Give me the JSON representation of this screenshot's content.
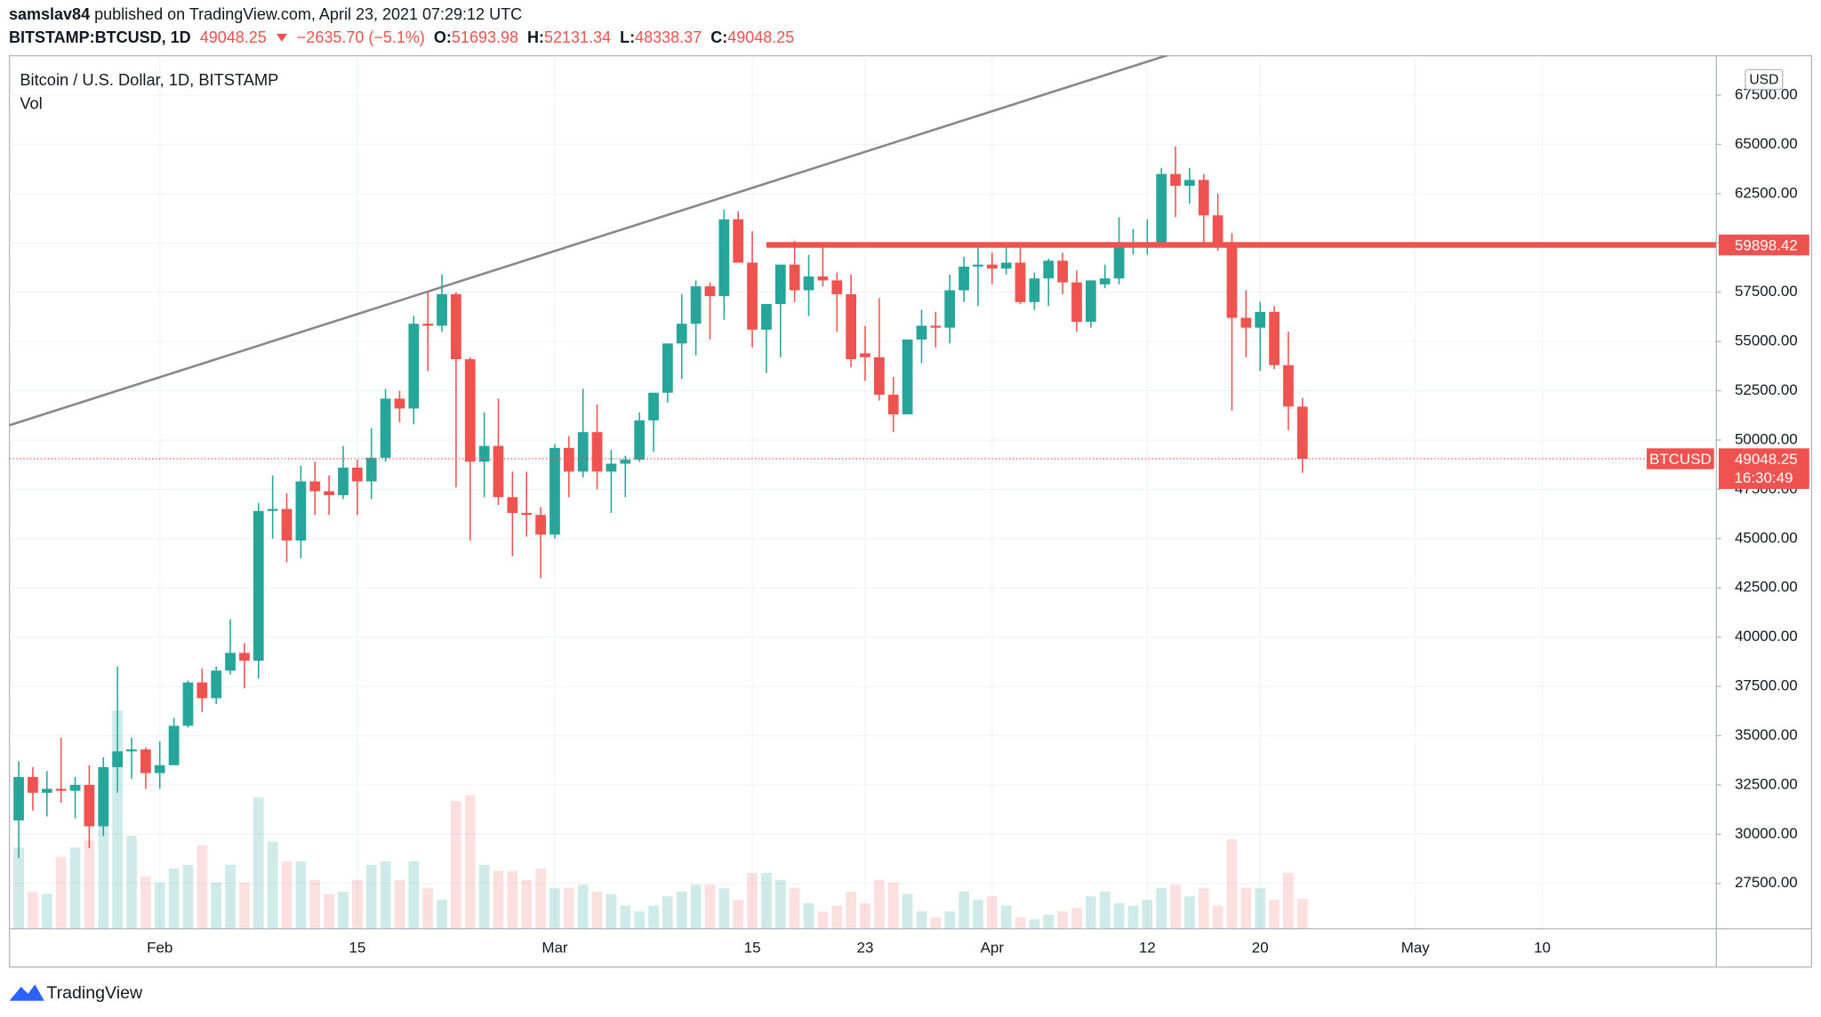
{
  "chart_data": {
    "type": "candlestick",
    "author": "samslav84",
    "published": "published on TradingView.com, April 23, 2021 07:29:12 UTC",
    "symbol": "BITSTAMP:BTCUSD, 1D",
    "change": "−2635.70 (−5.1%)",
    "ohlc_labels": [
      "O:",
      "H:",
      "L:",
      "C:"
    ],
    "title": "Bitcoin / U.S. Dollar, 1D, BITSTAMP",
    "volume_label": "Vol",
    "currency": "USD",
    "symbol_tag": "BTCUSD",
    "countdown": "16:30:49",
    "brand": "TradingView",
    "up_color": "#26a69a",
    "down_color": "#ef5350",
    "grid": true,
    "categories": [
      null,
      null,
      null,
      null,
      null,
      null,
      null,
      null,
      null,
      null,
      "Feb",
      null,
      null,
      null,
      null,
      null,
      null,
      null,
      null,
      null,
      null,
      null,
      null,
      null,
      "15",
      null,
      null,
      null,
      null,
      null,
      null,
      null,
      null,
      null,
      null,
      null,
      null,
      null,
      "Mar",
      null,
      null,
      null,
      null,
      null,
      null,
      null,
      null,
      null,
      null,
      null,
      null,
      null,
      "15",
      null,
      null,
      null,
      null,
      null,
      null,
      null,
      "23",
      null,
      null,
      null,
      null,
      null,
      null,
      null,
      null,
      "Apr",
      null,
      null,
      null,
      null,
      null,
      null,
      null,
      null,
      null,
      null,
      "12",
      null,
      null,
      null,
      null,
      null,
      null,
      null,
      "20",
      null,
      null,
      null,
      null,
      null,
      null,
      null,
      null,
      null,
      null,
      "May",
      null,
      null,
      null,
      null,
      null,
      null,
      null,
      null,
      "10",
      null,
      null,
      null,
      null,
      null,
      null,
      null,
      null,
      null,
      null,
      null,
      null
    ],
    "open": [
      30700,
      32900,
      32100,
      32300,
      32200,
      32500,
      30400,
      33400,
      34200,
      34300,
      33100,
      33500,
      35500,
      37700,
      36900,
      38300,
      39200,
      38800,
      46400,
      46500,
      44900,
      47900,
      47400,
      47200,
      48600,
      47900,
      49100,
      52100,
      51600,
      55900,
      55800,
      57400,
      54100,
      48900,
      49700,
      47100,
      46300,
      46200,
      45200,
      49600,
      48400,
      50400,
      48400,
      48800,
      49000,
      51000,
      52400,
      54900,
      55900,
      57800,
      57300,
      61200,
      59000,
      55600,
      56900,
      58900,
      57600,
      58300,
      58100,
      57400,
      54400,
      54200,
      52300,
      51300,
      55100,
      55800,
      55700,
      57600,
      58800,
      58900,
      58700,
      59000,
      57000,
      58200,
      59100,
      58000,
      56000,
      57900,
      58200,
      59800,
      59900,
      60000,
      63500,
      62900,
      63200,
      61400,
      60000,
      56200,
      55700,
      56500,
      53800,
      51693.98,
      null,
      null,
      null,
      null,
      null,
      null,
      null,
      null,
      null,
      null,
      null,
      null,
      null,
      null,
      null,
      null,
      null,
      null,
      null,
      null,
      null,
      null,
      null,
      null,
      null,
      null,
      null,
      null,
      null
    ],
    "high": [
      33700,
      33400,
      33200,
      34900,
      32900,
      33500,
      33900,
      38500,
      34900,
      34400,
      34700,
      35900,
      37800,
      38400,
      38500,
      40900,
      39700,
      46800,
      48200,
      47300,
      48700,
      48900,
      48200,
      49700,
      49000,
      50600,
      52600,
      52500,
      56300,
      57500,
      58400,
      57500,
      54200,
      51400,
      52100,
      48400,
      48400,
      46600,
      49800,
      50200,
      52600,
      51800,
      49500,
      49200,
      51400,
      52400,
      54900,
      57400,
      58100,
      58000,
      61700,
      61600,
      60600,
      56900,
      58900,
      60100,
      59400,
      59900,
      58500,
      58400,
      55800,
      57200,
      53200,
      55100,
      56600,
      56500,
      58400,
      59300,
      59800,
      59500,
      60000,
      59800,
      58500,
      59200,
      59500,
      58600,
      58100,
      58900,
      61300,
      60700,
      61200,
      63800,
      64900,
      63800,
      63500,
      62500,
      60500,
      57600,
      57000,
      56800,
      55500,
      52131.34,
      null,
      null,
      null,
      null,
      null,
      null,
      null,
      null,
      null,
      null,
      null,
      null,
      null,
      null,
      null,
      null,
      null,
      null,
      null,
      null,
      null,
      null,
      null,
      null,
      null,
      null,
      null,
      null,
      null
    ],
    "low": [
      28800,
      31200,
      30900,
      31600,
      30800,
      29300,
      29900,
      32100,
      32800,
      32300,
      32300,
      33500,
      35400,
      36200,
      36600,
      38100,
      37400,
      37900,
      45000,
      43800,
      44000,
      46200,
      46200,
      47000,
      46200,
      47000,
      48900,
      50900,
      50800,
      53500,
      55500,
      47600,
      44900,
      47100,
      46700,
      44100,
      45100,
      43000,
      45000,
      47100,
      48100,
      47500,
      46300,
      47100,
      48900,
      49400,
      51900,
      53100,
      54300,
      55100,
      56100,
      59000,
      54700,
      53400,
      54200,
      57000,
      56300,
      57800,
      55500,
      53700,
      53000,
      52000,
      50400,
      51300,
      53900,
      54700,
      54900,
      57000,
      56800,
      57900,
      58400,
      56900,
      56600,
      56800,
      57400,
      55500,
      55700,
      57700,
      57900,
      59400,
      59400,
      59800,
      61300,
      62000,
      60000,
      59600,
      51500,
      54200,
      53500,
      53600,
      50500,
      48338.37,
      null,
      null,
      null,
      null,
      null,
      null,
      null,
      null,
      null,
      null,
      null,
      null,
      null,
      null,
      null,
      null,
      null,
      null,
      null,
      null,
      null,
      null,
      null,
      null,
      null,
      null,
      null,
      null,
      null
    ],
    "close": [
      32900,
      32100,
      32300,
      32200,
      32500,
      30400,
      33400,
      34200,
      34300,
      33100,
      33500,
      35500,
      37700,
      36900,
      38300,
      39200,
      38800,
      46400,
      46500,
      44900,
      47900,
      47400,
      47200,
      48600,
      47900,
      49100,
      52100,
      51600,
      55900,
      55800,
      57400,
      54100,
      48900,
      49700,
      47100,
      46300,
      46200,
      45200,
      49600,
      48400,
      50400,
      48400,
      48800,
      49000,
      51000,
      52400,
      54900,
      55900,
      57800,
      57300,
      61200,
      59000,
      55600,
      56900,
      58900,
      57600,
      58300,
      58100,
      57400,
      54100,
      54200,
      52300,
      51300,
      55100,
      55800,
      55700,
      57600,
      58800,
      58900,
      58700,
      59000,
      57000,
      58200,
      59100,
      58000,
      56000,
      58100,
      58200,
      59800,
      59900,
      60000,
      63500,
      62900,
      63200,
      61400,
      60000,
      56200,
      55700,
      56500,
      53800,
      51700,
      49048.25,
      null,
      null,
      null,
      null,
      null,
      null,
      null,
      null,
      null,
      null,
      null,
      null,
      null,
      null,
      null,
      null,
      null,
      null,
      null,
      null,
      null,
      null,
      null,
      null,
      null,
      null,
      null,
      null,
      null
    ],
    "volume": [
      7000,
      3200,
      3000,
      6200,
      7000,
      7600,
      13500,
      18800,
      8000,
      4500,
      4000,
      5200,
      5500,
      7200,
      4000,
      5500,
      4000,
      11300,
      7500,
      5800,
      5800,
      4200,
      3000,
      3200,
      4200,
      5500,
      5800,
      4200,
      5800,
      3500,
      2500,
      11000,
      11500,
      5500,
      5000,
      5000,
      4200,
      5200,
      3500,
      3500,
      3800,
      3200,
      3000,
      2000,
      1500,
      2000,
      2800,
      3200,
      3800,
      3800,
      3500,
      2500,
      4800,
      4800,
      4200,
      3500,
      2200,
      1500,
      2000,
      3200,
      2200,
      4200,
      4000,
      3000,
      1500,
      1000,
      1500,
      3200,
      2500,
      2800,
      2000,
      1000,
      800,
      1200,
      1500,
      1800,
      2800,
      3200,
      2200,
      2000,
      2500,
      3500,
      3800,
      2800,
      3500,
      2000,
      7700,
      3500,
      3500,
      2500,
      4800,
      2600,
      null,
      null,
      null,
      null,
      null,
      null,
      null,
      null,
      null,
      null,
      null,
      null,
      null,
      null,
      null,
      null,
      null,
      null,
      null,
      null,
      null,
      null,
      null,
      null,
      null,
      null,
      null,
      null,
      null
    ],
    "ylim": [
      25200,
      69500
    ],
    "yticks": [
      {
        "value": 27500,
        "label": "27500.00"
      },
      {
        "value": 30000,
        "label": "30000.00"
      },
      {
        "value": 32500,
        "label": "32500.00"
      },
      {
        "value": 35000,
        "label": "35000.00"
      },
      {
        "value": 37500,
        "label": "37500.00"
      },
      {
        "value": 40000,
        "label": "40000.00"
      },
      {
        "value": 42500,
        "label": "42500.00"
      },
      {
        "value": 45000,
        "label": "45000.00"
      },
      {
        "value": 47500,
        "label": "47500.00"
      },
      {
        "value": 50000,
        "label": "50000.00"
      },
      {
        "value": 52500,
        "label": "52500.00"
      },
      {
        "value": 55000,
        "label": "55000.00"
      },
      {
        "value": 57500,
        "label": "57500.00"
      },
      {
        "value": 60000,
        "label": "60000.00"
      },
      {
        "value": 62500,
        "label": "62500.00"
      },
      {
        "value": 65000,
        "label": "65000.00"
      },
      {
        "value": 67500,
        "label": "67500.00"
      }
    ],
    "trendline": {
      "x": [
        0,
        80
      ],
      "y": [
        50900,
        69200
      ],
      "color": "#888888"
    },
    "level_line": {
      "value": 59898.42,
      "start": 53,
      "color": "#ef5350"
    }
  }
}
